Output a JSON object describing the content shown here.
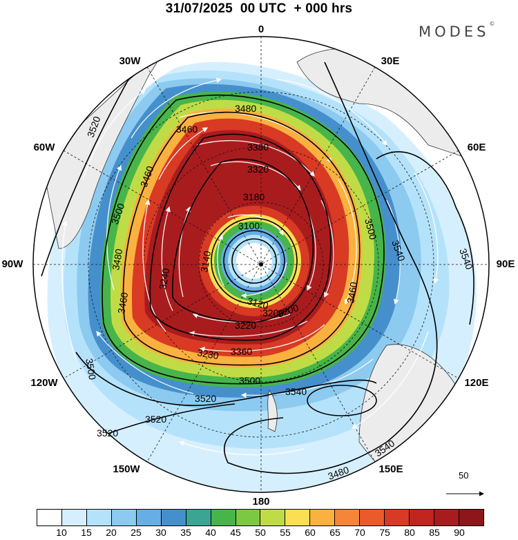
{
  "header": {
    "title": "31/07/2025  00 UTC  + 000 hrs",
    "brand": "MODES"
  },
  "longitude_labels": [
    "0",
    "30E",
    "60E",
    "90E",
    "120E",
    "150E",
    "180",
    "150W",
    "120W",
    "90W",
    "60W",
    "30W"
  ],
  "contour_labels": [
    "3480",
    "3460",
    "3380",
    "3320",
    "3460",
    "3500",
    "3520",
    "3520",
    "3520",
    "3500",
    "3520",
    "3540",
    "3540",
    "3540",
    "3540",
    "3500",
    "3460",
    "3480",
    "3500",
    "3460",
    "3480",
    "3360",
    "3220",
    "3200",
    "3230",
    "3240",
    "3100",
    "3140",
    "3120",
    "3180",
    "3200"
  ],
  "colorbar": {
    "labels": [
      "10",
      "15",
      "20",
      "25",
      "30",
      "35",
      "40",
      "45",
      "50",
      "55",
      "60",
      "65",
      "70",
      "75",
      "80",
      "85",
      "90"
    ],
    "colors": [
      "#ffffff",
      "#d6efff",
      "#b5e2fb",
      "#8ccaf0",
      "#66aee5",
      "#4590cc",
      "#3aa592",
      "#47b54a",
      "#7dc842",
      "#bfdc47",
      "#fadf53",
      "#fbb13f",
      "#f6853a",
      "#ea5a2b",
      "#d83a24",
      "#c12520",
      "#a91c1e",
      "#8e1519"
    ]
  },
  "vector_reference": {
    "label": "50"
  }
}
